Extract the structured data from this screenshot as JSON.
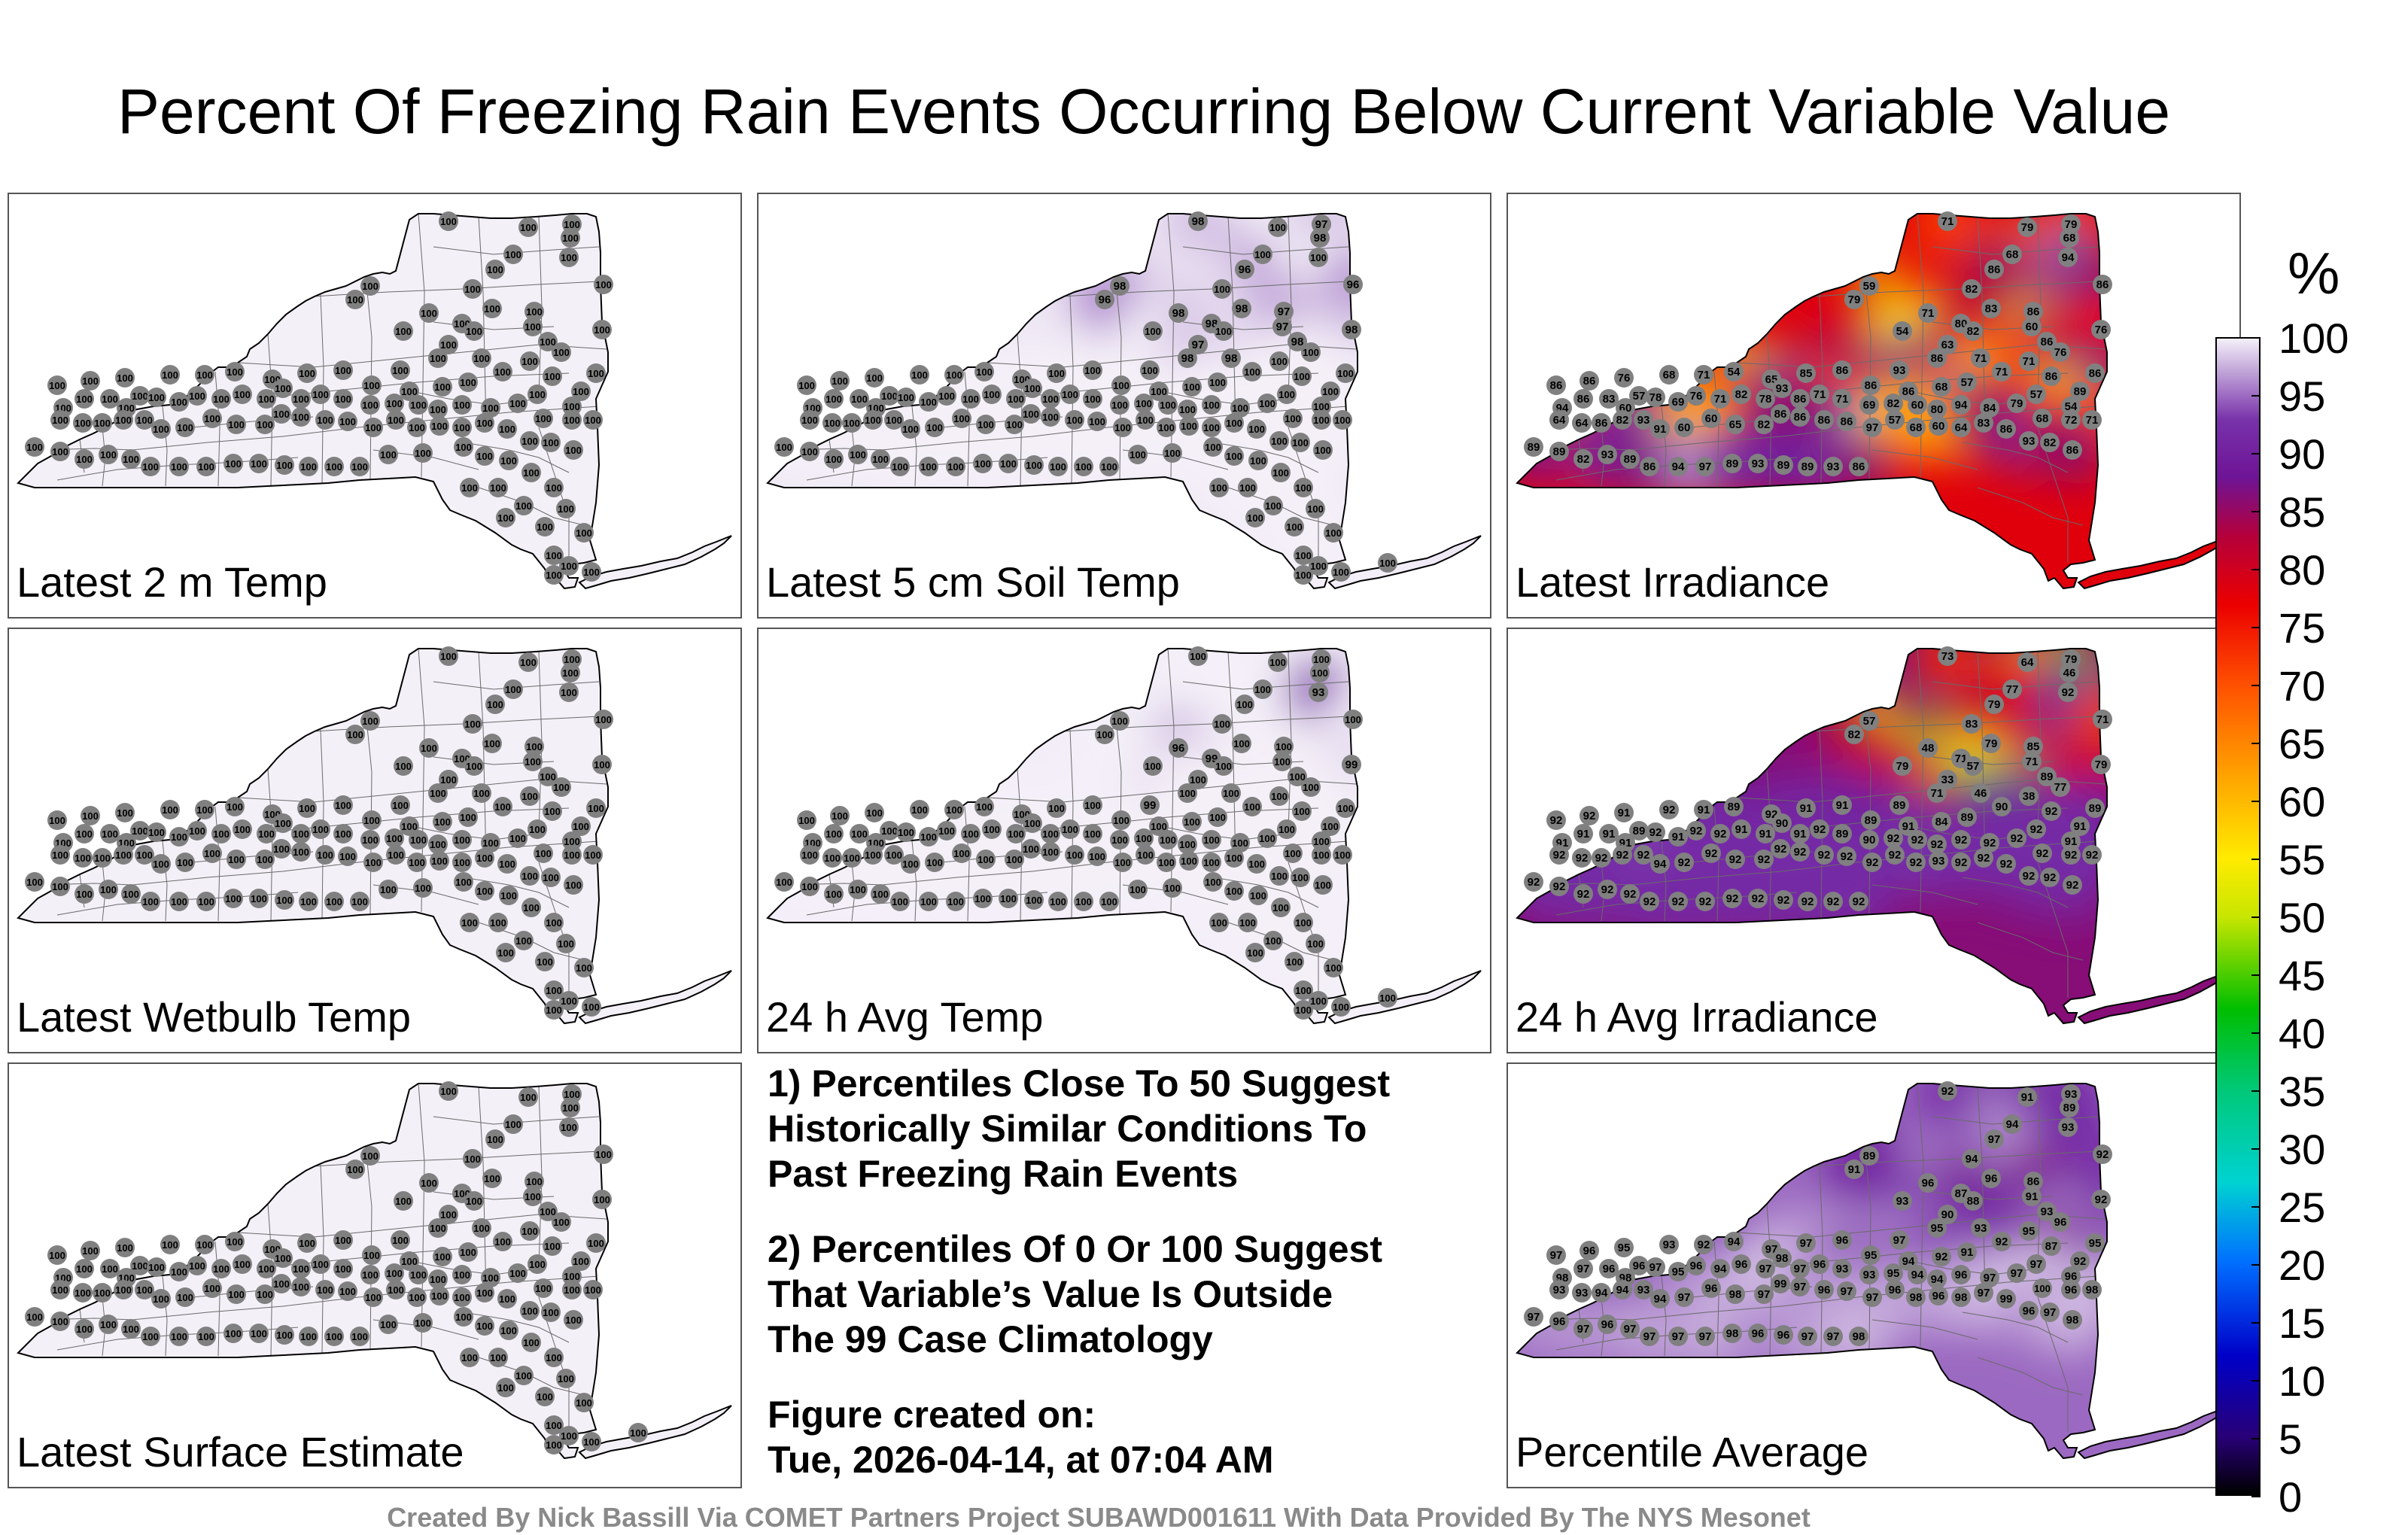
{
  "title": "Percent Of Freezing Rain Events Occurring Below Current Variable Value",
  "colors": {
    "uniform_fill": "#ece4f0",
    "deep_purple": "#6a2b98",
    "station_marker": "#808080"
  },
  "panels": [
    {
      "id": "p1",
      "label": "Latest 2 m Temp",
      "values": [
        100,
        100,
        100,
        100,
        100,
        100,
        100,
        100,
        100,
        100,
        100,
        100,
        100,
        100,
        100,
        100,
        100,
        100,
        100,
        100,
        100,
        100,
        100,
        100,
        100,
        100,
        100,
        100,
        100,
        100,
        100,
        100,
        100,
        100,
        100,
        100,
        100,
        100,
        100,
        100,
        100,
        100,
        100,
        100,
        100,
        100,
        100,
        100,
        100,
        100,
        100,
        100,
        100,
        100,
        100,
        100,
        100,
        100,
        100,
        100,
        100,
        100,
        100,
        100,
        100,
        100,
        100,
        100,
        100,
        100,
        100,
        100,
        100,
        100,
        100,
        100,
        100,
        100,
        100,
        100,
        100,
        100,
        100,
        100,
        100,
        100,
        100,
        100,
        100,
        100,
        100,
        100,
        100,
        100,
        100,
        100,
        100,
        100,
        100,
        100,
        100,
        100,
        100,
        100,
        100,
        100,
        100,
        100,
        100,
        100,
        100,
        100,
        100,
        100,
        100,
        100,
        100,
        100,
        100,
        100,
        100,
        100,
        100,
        100,
        100,
        100
      ]
    },
    {
      "id": "p2",
      "label": "Latest 5 cm Soil Temp",
      "values": [
        98,
        100,
        97,
        98,
        98,
        96,
        100,
        96,
        100,
        96,
        100,
        98,
        98,
        97,
        97,
        98,
        100,
        98,
        98,
        100,
        97,
        100,
        98,
        98,
        100,
        100,
        100,
        100,
        100,
        100,
        100,
        100,
        100,
        100,
        100,
        100,
        100,
        100,
        100,
        100,
        100,
        100,
        100,
        100,
        100,
        100,
        100,
        100,
        100,
        100,
        100,
        100,
        100,
        100,
        100,
        100,
        100,
        100,
        100,
        100,
        100,
        100,
        100,
        100,
        100,
        100,
        100,
        100,
        100,
        100,
        100,
        100,
        100,
        100,
        100,
        100,
        100,
        100,
        100,
        100,
        100,
        100,
        100,
        100,
        100,
        100,
        100,
        100,
        100,
        100,
        100,
        100,
        100,
        100,
        100,
        100,
        100,
        100,
        100,
        100,
        100,
        100,
        100,
        100,
        100,
        100,
        100,
        100,
        100,
        100,
        100,
        100,
        100,
        100,
        100,
        100,
        100,
        100,
        100,
        100,
        100,
        100,
        100,
        100,
        100,
        100,
        100
      ]
    },
    {
      "id": "p3",
      "label": "Latest Irradiance",
      "values": [
        71,
        79,
        79,
        68,
        59,
        79,
        68,
        86,
        94,
        86,
        82,
        71,
        83,
        86,
        60,
        80,
        54,
        76,
        86,
        93,
        63,
        82,
        86,
        71,
        71,
        76,
        86,
        89,
        86,
        54,
        57,
        71,
        57,
        68,
        86,
        86,
        86,
        85,
        65,
        54,
        71,
        68,
        76,
        86,
        86,
        94,
        86,
        83,
        60,
        57,
        78,
        69,
        76,
        71,
        82,
        78,
        93,
        86,
        71,
        71,
        69,
        82,
        60,
        80,
        94,
        84,
        79,
        68,
        72,
        71,
        64,
        64,
        86,
        82,
        93,
        91,
        60,
        60,
        65,
        82,
        86,
        86,
        86,
        86,
        97,
        57,
        68,
        60,
        64,
        83,
        86,
        93,
        82,
        86,
        89,
        89,
        82,
        93,
        89,
        86,
        94,
        97,
        89,
        93,
        89,
        89,
        93,
        86
      ]
    },
    {
      "id": "p4",
      "label": "Latest Wetbulb Temp",
      "values": [
        100,
        100,
        100,
        100,
        100,
        100,
        100,
        100,
        100,
        100,
        100,
        100,
        100,
        100,
        100,
        100,
        100,
        100,
        100,
        100,
        100,
        100,
        100,
        100,
        100,
        100,
        100,
        100,
        100,
        100,
        100,
        100,
        100,
        100,
        100,
        100,
        100,
        100,
        100,
        100,
        100,
        100,
        100,
        100,
        100,
        100,
        100,
        100,
        100,
        100,
        100,
        100,
        100,
        100,
        100,
        100,
        100,
        100,
        100,
        100,
        100,
        100,
        100,
        100,
        100,
        100,
        100,
        100,
        100,
        100,
        100,
        100,
        100,
        100,
        100,
        100,
        100,
        100,
        100,
        100,
        100,
        100,
        100,
        100,
        100,
        100,
        100,
        100,
        100,
        100,
        100,
        100,
        100,
        100,
        100,
        100,
        100,
        100,
        100,
        100,
        100,
        100,
        100,
        100,
        100,
        100,
        100,
        100,
        100,
        100,
        100,
        100,
        100,
        100,
        100,
        100,
        100,
        100,
        100,
        100,
        100,
        100,
        100,
        100,
        100,
        100
      ]
    },
    {
      "id": "p5",
      "label": "24 h Avg Temp",
      "values": [
        100,
        100,
        100,
        100,
        100,
        100,
        100,
        100,
        93,
        100,
        100,
        96,
        100,
        100,
        100,
        99,
        100,
        99,
        100,
        99,
        100,
        100,
        100,
        100,
        100,
        100,
        100,
        100,
        100,
        100,
        100,
        100,
        100,
        100,
        100,
        100,
        100,
        100,
        100,
        100,
        100,
        100,
        100,
        100,
        100,
        100,
        100,
        100,
        100,
        100,
        100,
        100,
        100,
        100,
        100,
        100,
        100,
        100,
        100,
        100,
        100,
        100,
        100,
        100,
        100,
        100,
        100,
        100,
        100,
        100,
        100,
        100,
        100,
        100,
        100,
        100,
        100,
        100,
        100,
        100,
        100,
        100,
        100,
        100,
        100,
        100,
        100,
        100,
        100,
        100,
        100,
        100,
        100,
        100,
        100,
        100,
        100,
        100,
        100,
        100,
        100,
        100,
        100,
        100,
        100,
        100,
        100,
        100,
        100,
        100,
        100,
        100,
        100,
        100,
        100,
        100,
        100,
        100,
        100,
        100,
        100,
        100,
        100,
        100,
        100,
        100,
        100
      ]
    },
    {
      "id": "p6",
      "label": "24 h Avg Irradiance",
      "values": [
        73,
        64,
        79,
        46,
        57,
        82,
        77,
        79,
        92,
        71,
        83,
        48,
        79,
        85,
        71,
        71,
        79,
        79,
        89,
        89,
        33,
        57,
        71,
        46,
        38,
        77,
        89,
        91,
        92,
        91,
        92,
        90,
        89,
        84,
        91,
        89,
        91,
        91,
        92,
        89,
        91,
        92,
        91,
        92,
        92,
        91,
        91,
        91,
        91,
        89,
        92,
        91,
        92,
        92,
        91,
        91,
        90,
        91,
        92,
        89,
        90,
        92,
        92,
        92,
        92,
        92,
        92,
        92,
        92,
        92,
        92,
        92,
        92,
        92,
        92,
        94,
        92,
        92,
        92,
        92,
        92,
        92,
        92,
        92,
        92,
        92,
        92,
        93,
        92,
        92,
        92,
        92,
        92,
        92,
        92,
        92,
        92,
        92,
        92,
        92,
        92,
        92,
        92,
        92,
        92,
        92,
        92,
        92
      ]
    },
    {
      "id": "p7",
      "label": "Latest Surface Estimate",
      "values": [
        100,
        100,
        100,
        100,
        100,
        100,
        100,
        100,
        100,
        100,
        100,
        100,
        100,
        100,
        100,
        100,
        100,
        100,
        100,
        100,
        100,
        100,
        100,
        100,
        100,
        100,
        100,
        100,
        100,
        100,
        100,
        100,
        100,
        100,
        100,
        100,
        100,
        100,
        100,
        100,
        100,
        100,
        100,
        100,
        100,
        100,
        100,
        100,
        100,
        100,
        100,
        100,
        100,
        100,
        100,
        100,
        100,
        100,
        100,
        100,
        100,
        100,
        100,
        100,
        100,
        100,
        100,
        100,
        100,
        100,
        100,
        100,
        100,
        100,
        100,
        100,
        100,
        100,
        100,
        100,
        100,
        100,
        100,
        100,
        100,
        100,
        100,
        100,
        100,
        100,
        100,
        100,
        100,
        100,
        100,
        100,
        100,
        100,
        100,
        100,
        100,
        100,
        100,
        100,
        100,
        100,
        100,
        100,
        100,
        100,
        100,
        100,
        100,
        100,
        100,
        100,
        100,
        100,
        100,
        100,
        100,
        100,
        100,
        100,
        100,
        100,
        100
      ]
    },
    {
      "id": "p9",
      "label": "Percentile Average",
      "values": [
        92,
        91,
        93,
        89,
        89,
        91,
        94,
        97,
        93,
        92,
        94,
        96,
        96,
        86,
        91,
        87,
        93,
        92,
        93,
        97,
        90,
        88,
        95,
        93,
        95,
        96,
        95,
        92,
        87,
        96,
        97,
        92,
        91,
        92,
        94,
        95,
        96,
        97,
        97,
        94,
        92,
        93,
        95,
        96,
        97,
        98,
        97,
        96,
        98,
        96,
        97,
        95,
        96,
        94,
        96,
        97,
        98,
        97,
        96,
        93,
        93,
        95,
        94,
        94,
        96,
        97,
        97,
        100,
        96,
        98,
        93,
        93,
        94,
        94,
        93,
        94,
        97,
        96,
        98,
        97,
        99,
        97,
        96,
        97,
        97,
        96,
        98,
        96,
        98,
        97,
        99,
        96,
        97,
        98,
        97,
        96,
        97,
        96,
        97,
        97,
        97,
        97,
        98,
        96,
        96,
        97,
        97,
        98
      ]
    }
  ],
  "notes": {
    "note1": "1) Percentiles Close To 50 Suggest\nHistorically Similar Conditions To\nPast Freezing Rain Events",
    "note2": "2) Percentiles Of 0 Or 100 Suggest\nThat Variable’s Value Is Outside\nThe 99 Case Climatology",
    "note3": "Figure created on:\nTue, 2026-04-14, at 07:04 AM"
  },
  "colorbar": {
    "unit": "%",
    "ticks": [
      "100",
      "95",
      "90",
      "85",
      "80",
      "75",
      "70",
      "65",
      "60",
      "55",
      "50",
      "45",
      "40",
      "35",
      "30",
      "25",
      "20",
      "15",
      "10",
      "5",
      "0"
    ]
  },
  "footer": "Created By Nick Bassill Via COMET Partners Project SUBAWD001611 With Data Provided By The NYS Mesonet"
}
